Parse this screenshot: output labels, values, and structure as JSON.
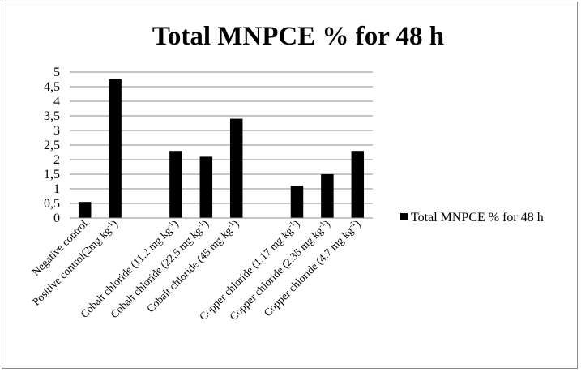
{
  "chart_data": {
    "type": "bar",
    "title": "Total MNPCE % for 48 h",
    "xlabel": "",
    "ylabel": "",
    "ylim": [
      0,
      5
    ],
    "yticks": [
      "0",
      "0,5",
      "1",
      "1,5",
      "2",
      "2,5",
      "3",
      "3,5",
      "4",
      "4,5",
      "5"
    ],
    "grid": true,
    "legend_position": "right",
    "categories": [
      "Negative control",
      "Positive control(2mg kg-1)",
      "",
      "Cobalt chloride (11.2 mg kg-1)",
      "Cobalt chloride (22.5 mg kg-1)",
      "Cobalt chloride (45 mg kg-1)",
      "",
      "Copper chloride (1.17 mg kg-1)",
      "Copper chloride (2.35 mg kg-1)",
      "Copper chloride (4.7 mg kg-1)"
    ],
    "series": [
      {
        "name": "Total MNPCE % for 48 h",
        "color": "#000000",
        "values": [
          0.55,
          4.75,
          null,
          2.3,
          2.1,
          3.4,
          null,
          1.1,
          1.5,
          2.3
        ]
      }
    ]
  }
}
